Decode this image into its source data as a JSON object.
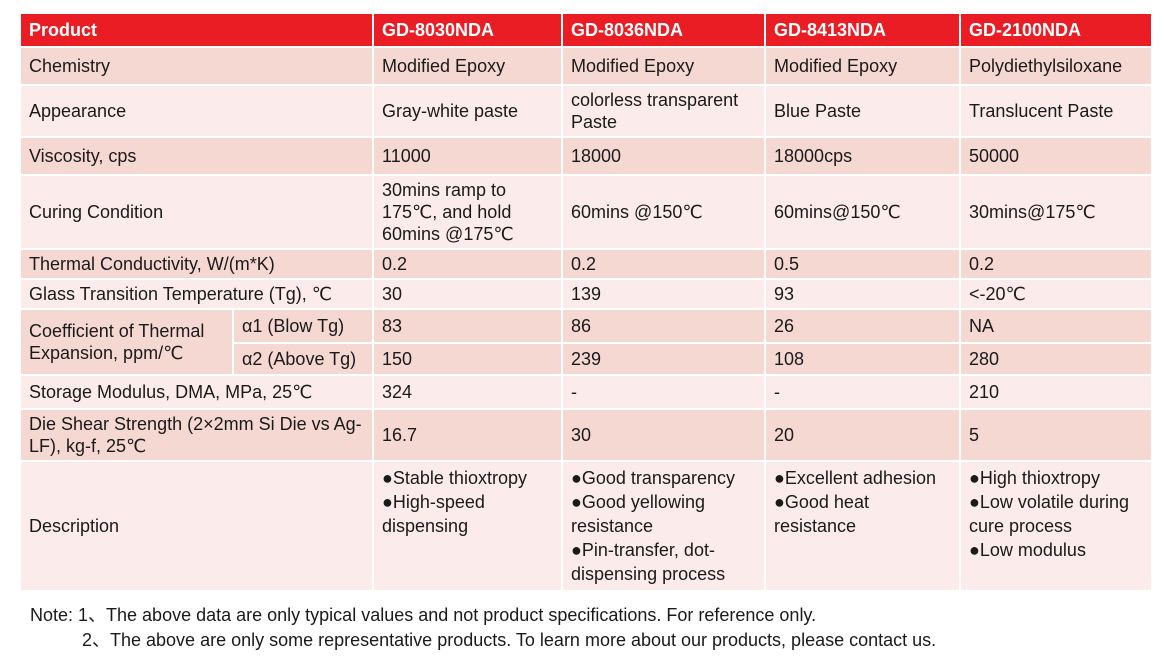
{
  "header": {
    "product": "Product",
    "products": [
      "GD-8030NDA",
      "GD-8036NDA",
      "GD-8413NDA",
      "GD-2100NDA"
    ]
  },
  "rows": {
    "chemistry": {
      "label": "Chemistry",
      "values": [
        "Modified Epoxy",
        "Modified Epoxy",
        "Modified Epoxy",
        "Polydiethylsiloxane"
      ]
    },
    "appearance": {
      "label": "Appearance",
      "values": [
        "Gray-white paste",
        "colorless transparent Paste",
        "Blue Paste",
        "Translucent Paste"
      ]
    },
    "viscosity": {
      "label": "Viscosity, cps",
      "values": [
        "11000",
        "18000",
        "18000cps",
        "50000"
      ]
    },
    "curing": {
      "label": "Curing Condition",
      "values": [
        "30mins ramp to 175℃, and hold 60mins @175℃",
        "60mins @150℃",
        "60mins@150℃",
        "30mins@175℃"
      ]
    },
    "thermal": {
      "label": "Thermal Conductivity, W/(m*K)",
      "values": [
        "0.2",
        "0.2",
        "0.5",
        "0.2"
      ]
    },
    "tg": {
      "label": "Glass Transition Temperature (Tg), ℃",
      "values": [
        "30",
        "139",
        "93",
        "<-20℃"
      ]
    },
    "cte": {
      "label": "Coefficient of Thermal Expansion, ppm/℃",
      "a1": {
        "label": "α1 (Blow Tg)",
        "values": [
          "83",
          "86",
          "26",
          "NA"
        ]
      },
      "a2": {
        "label": "α2 (Above Tg)",
        "values": [
          "150",
          "239",
          "108",
          "280"
        ]
      }
    },
    "storage": {
      "label": "Storage Modulus, DMA, MPa, 25℃",
      "values": [
        "324",
        "-",
        "-",
        "210"
      ]
    },
    "shear": {
      "label": "Die Shear Strength (2×2mm Si Die vs Ag-LF), kg-f, 25℃",
      "values": [
        "16.7",
        "30",
        "20",
        "5"
      ]
    },
    "description": {
      "label": "Description",
      "values": [
        [
          "●Stable thioxtropy",
          "●High-speed dispensing"
        ],
        [
          "●Good transparency",
          "●Good yellowing resistance",
          "●Pin-transfer, dot-dispensing process"
        ],
        [
          "●Excellent adhesion",
          "●Good heat resistance"
        ],
        [
          "●High thioxtropy",
          "●Low volatile during cure process",
          "●Low modulus"
        ]
      ]
    }
  },
  "notes": {
    "line1": "Note: 1、The above data are only typical values and not product specifications. For reference only.",
    "line2": "2、The above are only some representative products. To learn more about our products, please contact us."
  }
}
